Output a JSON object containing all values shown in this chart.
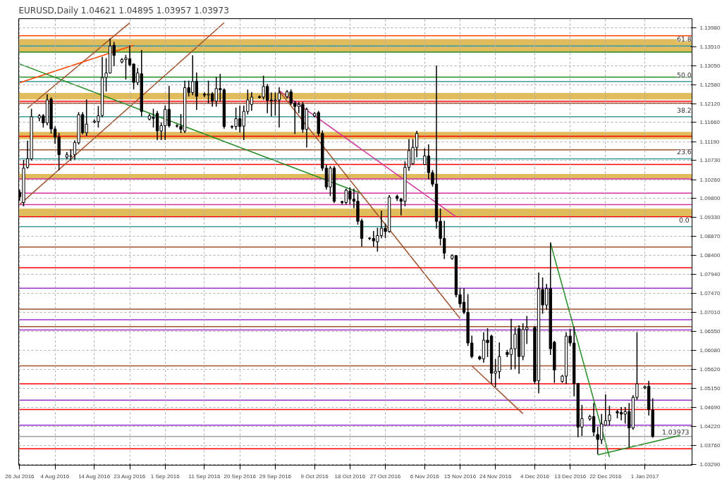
{
  "chart_data": {
    "type": "candlestick",
    "title": "EURUSD,Daily  1.04621 1.04895 1.03957 1.03973",
    "x": [
      "2016-07-26",
      "2016-07-27",
      "2016-07-28",
      "2016-07-29",
      "2016-07-31",
      "2016-08-01",
      "2016-08-02",
      "2016-08-03",
      "2016-08-04",
      "2016-08-05",
      "2016-08-07",
      "2016-08-08",
      "2016-08-09",
      "2016-08-10",
      "2016-08-11",
      "2016-08-12",
      "2016-08-14",
      "2016-08-15",
      "2016-08-16",
      "2016-08-17",
      "2016-08-18",
      "2016-08-19",
      "2016-08-21",
      "2016-08-22",
      "2016-08-23",
      "2016-08-24",
      "2016-08-25",
      "2016-08-26",
      "2016-08-28",
      "2016-08-29",
      "2016-08-30",
      "2016-08-31",
      "2016-09-01",
      "2016-09-02",
      "2016-09-04",
      "2016-09-05",
      "2016-09-06",
      "2016-09-07",
      "2016-09-08",
      "2016-09-09",
      "2016-09-11",
      "2016-09-12",
      "2016-09-13",
      "2016-09-14",
      "2016-09-15",
      "2016-09-16",
      "2016-09-18",
      "2016-09-19",
      "2016-09-20",
      "2016-09-21",
      "2016-09-22",
      "2016-09-23",
      "2016-09-25",
      "2016-09-26",
      "2016-09-27",
      "2016-09-28",
      "2016-09-29",
      "2016-09-30",
      "2016-10-02",
      "2016-10-03",
      "2016-10-04",
      "2016-10-05",
      "2016-10-06",
      "2016-10-07",
      "2016-10-09",
      "2016-10-10",
      "2016-10-11",
      "2016-10-12",
      "2016-10-13",
      "2016-10-14",
      "2016-10-16",
      "2016-10-17",
      "2016-10-18",
      "2016-10-19",
      "2016-10-20",
      "2016-10-21",
      "2016-10-23",
      "2016-10-24",
      "2016-10-25",
      "2016-10-26",
      "2016-10-27",
      "2016-10-28",
      "2016-10-30",
      "2016-10-31",
      "2016-11-01",
      "2016-11-02",
      "2016-11-03",
      "2016-11-04",
      "2016-11-06",
      "2016-11-07",
      "2016-11-08",
      "2016-11-09",
      "2016-11-10",
      "2016-11-11",
      "2016-11-13",
      "2016-11-14",
      "2016-11-15",
      "2016-11-16",
      "2016-11-17",
      "2016-11-18",
      "2016-11-20",
      "2016-11-21",
      "2016-11-22",
      "2016-11-23",
      "2016-11-24",
      "2016-11-25",
      "2016-11-27",
      "2016-11-28",
      "2016-11-29",
      "2016-11-30",
      "2016-12-01",
      "2016-12-02",
      "2016-12-04",
      "2016-12-05",
      "2016-12-06",
      "2016-12-07",
      "2016-12-08",
      "2016-12-09",
      "2016-12-11",
      "2016-12-12",
      "2016-12-13",
      "2016-12-14",
      "2016-12-15",
      "2016-12-16",
      "2016-12-18",
      "2016-12-19",
      "2016-12-20",
      "2016-12-21",
      "2016-12-22",
      "2016-12-23",
      "2016-12-25",
      "2016-12-26",
      "2016-12-27",
      "2016-12-28",
      "2016-12-29",
      "2016-12-30",
      "2017-01-01",
      "2017-01-02",
      "2017-01-03"
    ],
    "ohlc": [
      [
        1.0995,
        1.1,
        1.0975,
        1.0984
      ],
      [
        1.097,
        1.1073,
        1.0962,
        1.1054
      ],
      [
        1.1056,
        1.112,
        1.1054,
        1.1077
      ],
      [
        1.1077,
        1.1198,
        1.1074,
        1.118
      ],
      [
        1.1177,
        1.1185,
        1.117,
        1.1182
      ],
      [
        1.1182,
        1.1185,
        1.1155,
        1.1165
      ],
      [
        1.1165,
        1.1234,
        1.116,
        1.1221
      ],
      [
        1.1223,
        1.1226,
        1.114,
        1.115
      ],
      [
        1.115,
        1.1155,
        1.1115,
        1.113
      ],
      [
        1.113,
        1.1139,
        1.105,
        1.1087
      ],
      [
        1.1081,
        1.1092,
        1.1077,
        1.1087
      ],
      [
        1.1083,
        1.1099,
        1.1073,
        1.1084
      ],
      [
        1.1087,
        1.1121,
        1.1076,
        1.1117
      ],
      [
        1.1116,
        1.119,
        1.1113,
        1.1185
      ],
      [
        1.1185,
        1.119,
        1.1138,
        1.1141
      ],
      [
        1.1141,
        1.1221,
        1.1134,
        1.1162
      ],
      [
        1.1167,
        1.1172,
        1.1165,
        1.1169
      ],
      [
        1.1168,
        1.1205,
        1.1155,
        1.1182
      ],
      [
        1.1183,
        1.1325,
        1.118,
        1.1276
      ],
      [
        1.1276,
        1.1322,
        1.1243,
        1.1287
      ],
      [
        1.1287,
        1.137,
        1.1287,
        1.1353
      ],
      [
        1.1355,
        1.1362,
        1.1305,
        1.133
      ],
      [
        1.1314,
        1.1322,
        1.1312,
        1.132
      ],
      [
        1.132,
        1.133,
        1.1272,
        1.1324
      ],
      [
        1.1322,
        1.1353,
        1.1305,
        1.1307
      ],
      [
        1.1309,
        1.1309,
        1.1248,
        1.1264
      ],
      [
        1.1264,
        1.1298,
        1.1259,
        1.1287
      ],
      [
        1.1285,
        1.1342,
        1.1182,
        1.1193
      ],
      [
        1.1174,
        1.1186,
        1.1172,
        1.1182
      ],
      [
        1.1178,
        1.1198,
        1.1155,
        1.1176
      ],
      [
        1.1188,
        1.1193,
        1.1124,
        1.1145
      ],
      [
        1.1145,
        1.1165,
        1.1124,
        1.1158
      ],
      [
        1.1158,
        1.1206,
        1.1124,
        1.1198
      ],
      [
        1.1198,
        1.1254,
        1.1155,
        1.1158
      ],
      [
        1.1158,
        1.116,
        1.1155,
        1.1157
      ],
      [
        1.1156,
        1.1185,
        1.1141,
        1.1149
      ],
      [
        1.1145,
        1.1267,
        1.1141,
        1.1251
      ],
      [
        1.1251,
        1.1267,
        1.1231,
        1.1239
      ],
      [
        1.1239,
        1.1329,
        1.1234,
        1.1266
      ],
      [
        1.1267,
        1.1287,
        1.1198,
        1.123
      ],
      [
        1.1235,
        1.1238,
        1.1229,
        1.1233
      ],
      [
        1.1233,
        1.1267,
        1.1213,
        1.1235
      ],
      [
        1.1236,
        1.1239,
        1.1206,
        1.1218
      ],
      [
        1.1218,
        1.1276,
        1.1206,
        1.1249
      ],
      [
        1.1249,
        1.1284,
        1.1218,
        1.1246
      ],
      [
        1.1246,
        1.1248,
        1.1152,
        1.1156
      ],
      [
        1.1156,
        1.1158,
        1.1152,
        1.1155
      ],
      [
        1.1156,
        1.1201,
        1.1149,
        1.1175
      ],
      [
        1.1175,
        1.1206,
        1.1143,
        1.1156
      ],
      [
        1.1157,
        1.1206,
        1.1124,
        1.1193
      ],
      [
        1.1193,
        1.1245,
        1.1187,
        1.1221
      ],
      [
        1.121,
        1.1239,
        1.1196,
        1.1228
      ],
      [
        1.1229,
        1.1231,
        1.1226,
        1.1227
      ],
      [
        1.1228,
        1.1279,
        1.1223,
        1.1254
      ],
      [
        1.1254,
        1.1259,
        1.119,
        1.122
      ],
      [
        1.1221,
        1.1238,
        1.1182,
        1.1219
      ],
      [
        1.1219,
        1.1238,
        1.1184,
        1.1221
      ],
      [
        1.1221,
        1.1251,
        1.1155,
        1.1238
      ],
      [
        1.1229,
        1.1244,
        1.1226,
        1.1241
      ],
      [
        1.1241,
        1.1246,
        1.121,
        1.1213
      ],
      [
        1.1213,
        1.1218,
        1.1139,
        1.1205
      ],
      [
        1.1205,
        1.1215,
        1.119,
        1.121
      ],
      [
        1.121,
        1.1215,
        1.1142,
        1.1149
      ],
      [
        1.1149,
        1.1201,
        1.1106,
        1.1198
      ],
      [
        1.1182,
        1.119,
        1.118,
        1.1188
      ],
      [
        1.119,
        1.1193,
        1.1134,
        1.1139
      ],
      [
        1.1139,
        1.1145,
        1.1049,
        1.1054
      ],
      [
        1.1054,
        1.1061,
        1.1003,
        1.1008
      ],
      [
        1.1008,
        1.1058,
        1.0987,
        1.1054
      ],
      [
        1.1054,
        1.1058,
        1.097,
        1.0973
      ],
      [
        1.0972,
        1.0973,
        1.0966,
        1.097
      ],
      [
        1.097,
        1.1003,
        1.0966,
        1.1
      ],
      [
        1.0998,
        1.1006,
        1.0967,
        1.0978
      ],
      [
        1.0978,
        1.1003,
        1.0957,
        1.0973
      ],
      [
        1.0973,
        1.099,
        1.0917,
        1.0924
      ],
      [
        1.0925,
        1.0929,
        1.0863,
        1.0882
      ],
      [
        1.0883,
        1.0884,
        1.0879,
        1.0882
      ],
      [
        1.0882,
        1.0899,
        1.0863,
        1.0876
      ],
      [
        1.0874,
        1.0907,
        1.0851,
        1.0889
      ],
      [
        1.0889,
        1.0949,
        1.0884,
        1.0907
      ],
      [
        1.0907,
        1.0917,
        1.0884,
        1.0899
      ],
      [
        1.0899,
        1.0987,
        1.0897,
        1.0983
      ],
      [
        1.0985,
        1.0988,
        1.0975,
        1.098
      ],
      [
        1.0978,
        1.098,
        1.094,
        1.0973
      ],
      [
        1.0973,
        1.1069,
        1.0962,
        1.1056
      ],
      [
        1.1056,
        1.1124,
        1.1049,
        1.1097
      ],
      [
        1.1065,
        1.1124,
        1.1063,
        1.1105
      ],
      [
        1.1105,
        1.1144,
        1.1082,
        1.1139
      ],
      [
        1.1063,
        1.1101,
        1.1063,
        1.1084
      ],
      [
        1.1084,
        1.1111,
        1.1028,
        1.1043
      ],
      [
        1.1043,
        1.1048,
        1.101,
        1.1015
      ],
      [
        1.1015,
        1.1304,
        1.0907,
        1.0924
      ],
      [
        1.0924,
        1.0954,
        1.0866,
        1.0882
      ],
      [
        1.0882,
        1.0924,
        1.0833,
        1.0846
      ],
      [
        1.0833,
        1.0842,
        1.0831,
        1.084
      ],
      [
        1.084,
        1.084,
        1.0739,
        1.0744
      ],
      [
        1.0744,
        1.0759,
        1.0714,
        1.0722
      ],
      [
        1.0726,
        1.0759,
        1.0698,
        1.0701
      ],
      [
        1.0701,
        1.0744,
        1.062,
        1.0626
      ],
      [
        1.0626,
        1.0643,
        1.059,
        1.0593
      ],
      [
        1.0592,
        1.0594,
        1.0585,
        1.0587
      ],
      [
        1.0587,
        1.0651,
        1.0579,
        1.0633
      ],
      [
        1.0633,
        1.0661,
        1.0593,
        1.0627
      ],
      [
        1.0643,
        1.0645,
        1.0527,
        1.0552
      ],
      [
        1.0552,
        1.0585,
        1.0519,
        1.0557
      ],
      [
        1.0556,
        1.0626,
        1.054,
        1.0593
      ],
      [
        1.0603,
        1.0608,
        1.0593,
        1.0598
      ],
      [
        1.0598,
        1.0684,
        1.0562,
        1.0612
      ],
      [
        1.0612,
        1.0663,
        1.0564,
        1.0648
      ],
      [
        1.0661,
        1.0668,
        1.0552,
        1.0593
      ],
      [
        1.0593,
        1.0673,
        1.0585,
        1.0659
      ],
      [
        1.0659,
        1.0691,
        1.0625,
        1.0664
      ],
      [
        1.0664,
        1.0666,
        1.0527,
        1.0532
      ],
      [
        1.0534,
        1.0797,
        1.0504,
        1.0759
      ],
      [
        1.0757,
        1.0785,
        1.0699,
        1.0719
      ],
      [
        1.0719,
        1.0769,
        1.0709,
        1.0759
      ],
      [
        1.0759,
        1.0871,
        1.0598,
        1.0612
      ],
      [
        1.0628,
        1.063,
        1.053,
        1.056
      ],
      [
        1.0532,
        1.0547,
        1.053,
        1.0545
      ],
      [
        1.0545,
        1.0651,
        1.0527,
        1.0643
      ],
      [
        1.0643,
        1.0659,
        1.062,
        1.0626
      ],
      [
        1.0626,
        1.0664,
        1.0497,
        1.0527
      ],
      [
        1.0527,
        1.0527,
        1.0397,
        1.042
      ],
      [
        1.042,
        1.0473,
        1.04,
        1.0441
      ],
      [
        1.044,
        1.0449,
        1.0437,
        1.0446
      ],
      [
        1.0446,
        1.0478,
        1.04,
        1.0408
      ],
      [
        1.0402,
        1.042,
        1.0355,
        1.039
      ],
      [
        1.0389,
        1.0451,
        1.038,
        1.0428
      ],
      [
        1.0425,
        1.0499,
        1.0425,
        1.0436
      ],
      [
        1.0436,
        1.0471,
        1.0425,
        1.045
      ],
      [
        1.0458,
        1.0461,
        1.0443,
        1.0455
      ],
      [
        1.0456,
        1.0468,
        1.0438,
        1.0452
      ],
      [
        1.0452,
        1.0468,
        1.043,
        1.0458
      ],
      [
        1.0458,
        1.0478,
        1.0372,
        1.0418
      ],
      [
        1.0418,
        1.0497,
        1.0415,
        1.0493
      ],
      [
        1.0493,
        1.0651,
        1.0488,
        1.0526
      ],
      [
        1.0516,
        1.0521,
        1.0514,
        1.0519
      ],
      [
        1.052,
        1.0532,
        1.045,
        1.0463
      ],
      [
        1.04621,
        1.04895,
        1.03957,
        1.03973
      ]
    ],
    "series": [
      {
        "type": "line",
        "color": "#a0522d",
        "x": [
          "2016-07-26",
          "2016-09-16"
        ],
        "values": [
          1.0965,
          1.141
        ]
      },
      {
        "type": "line",
        "color": "#a0522d",
        "x": [
          "2016-07-28",
          "2016-08-23"
        ],
        "values": [
          1.1201,
          1.141
        ]
      },
      {
        "type": "line",
        "color": "#ff4500",
        "x": [
          "2016-07-26",
          "2016-08-24"
        ],
        "values": [
          1.1263,
          1.1355
        ]
      },
      {
        "type": "line",
        "color": "#228b22",
        "x": [
          "2016-07-26",
          "2016-10-21"
        ],
        "values": [
          1.1309,
          1.0992
        ]
      },
      {
        "type": "line",
        "color": "#d1329b",
        "x": [
          "2016-09-30",
          "2016-11-14"
        ],
        "values": [
          1.1244,
          1.0935
        ]
      },
      {
        "type": "line",
        "color": "#a0522d",
        "x": [
          "2016-09-30",
          "2016-11-15"
        ],
        "values": [
          1.1243,
          1.0686
        ]
      },
      {
        "type": "line",
        "color": "#a0522d",
        "x": [
          "2016-11-18",
          "2016-12-01"
        ],
        "values": [
          1.057,
          1.0453
        ]
      },
      {
        "type": "line",
        "color": "#228b22",
        "x": [
          "2016-12-08",
          "2016-12-23"
        ],
        "values": [
          1.0871,
          1.0347
        ]
      },
      {
        "type": "line",
        "color": "#228b22",
        "x": [
          "2016-12-20",
          "2017-01-10"
        ],
        "values": [
          1.0352,
          1.04
        ]
      }
    ],
    "bands": [
      {
        "axis": "y",
        "from": 1.1338,
        "to": 1.137,
        "color": "#d4a017"
      },
      {
        "axis": "y",
        "from": 1.1222,
        "to": 1.1238,
        "color": "#d4a017"
      },
      {
        "axis": "y",
        "from": 1.1125,
        "to": 1.1143,
        "color": "#d4a017"
      },
      {
        "axis": "y",
        "from": 1.1028,
        "to": 1.104,
        "color": "#d4a017"
      },
      {
        "axis": "y",
        "from": 1.0935,
        "to": 1.0955,
        "color": "#d4a017"
      }
    ],
    "ref_lines": [
      {
        "axis": "y",
        "value": 1.1378,
        "color": "#ff4500"
      },
      {
        "axis": "y",
        "value": 1.1353,
        "color": "#3c9c9c"
      },
      {
        "axis": "y",
        "value": 1.1338,
        "color": "#228b22"
      },
      {
        "axis": "y",
        "value": 1.1277,
        "color": "#228b22"
      },
      {
        "axis": "y",
        "value": 1.1266,
        "color": "#3c9c9c"
      },
      {
        "axis": "y",
        "value": 1.1218,
        "color": "#ff0000"
      },
      {
        "axis": "y",
        "value": 1.1213,
        "color": "#a0522d"
      },
      {
        "axis": "y",
        "value": 1.118,
        "color": "#3c9c9c"
      },
      {
        "axis": "y",
        "value": 1.1132,
        "color": "#ff0000"
      },
      {
        "axis": "y",
        "value": 1.1099,
        "color": "#a0522d"
      },
      {
        "axis": "y",
        "value": 1.1077,
        "color": "#3c9c9c"
      },
      {
        "axis": "y",
        "value": 1.1063,
        "color": "#ff0000"
      },
      {
        "axis": "y",
        "value": 1.1028,
        "color": "#d1329b"
      },
      {
        "axis": "y",
        "value": 1.0993,
        "color": "#d1329b"
      },
      {
        "axis": "y",
        "value": 1.0965,
        "color": "#d1329b"
      },
      {
        "axis": "y",
        "value": 1.0935,
        "color": "#ff0000"
      },
      {
        "axis": "y",
        "value": 1.0911,
        "color": "#3c9c9c"
      },
      {
        "axis": "y",
        "value": 1.0861,
        "color": "#a0522d"
      },
      {
        "axis": "y",
        "value": 1.081,
        "color": "#ff0000"
      },
      {
        "axis": "y",
        "value": 1.076,
        "color": "#9932cc"
      },
      {
        "axis": "y",
        "value": 1.0709,
        "color": "#a0522d"
      },
      {
        "axis": "y",
        "value": 1.0683,
        "color": "#9932cc"
      },
      {
        "axis": "y",
        "value": 1.0666,
        "color": "#a0522d"
      },
      {
        "axis": "y",
        "value": 1.0658,
        "color": "#9932cc"
      },
      {
        "axis": "y",
        "value": 1.057,
        "color": "#a0522d"
      },
      {
        "axis": "y",
        "value": 1.0526,
        "color": "#ff0000"
      },
      {
        "axis": "y",
        "value": 1.0486,
        "color": "#9932cc"
      },
      {
        "axis": "y",
        "value": 1.0463,
        "color": "#ff0000"
      },
      {
        "axis": "y",
        "value": 1.0425,
        "color": "#9932cc"
      },
      {
        "axis": "y",
        "value": 1.0367,
        "color": "#ff0000"
      },
      {
        "axis": "y",
        "value": 1.03973,
        "color": "#a0a0a0",
        "label": "1.03973"
      }
    ],
    "annotations": [
      {
        "text": "61.8",
        "x": "2017-01-11",
        "y": 1.1353
      },
      {
        "text": "50.0",
        "x": "2017-01-11",
        "y": 1.1266
      },
      {
        "text": "38.2",
        "x": "2017-01-11",
        "y": 1.118
      },
      {
        "text": "23.6",
        "x": "2017-01-11",
        "y": 1.1077
      },
      {
        "text": "0.0",
        "x": "2017-01-11",
        "y": 1.0911
      }
    ],
    "xlim": [
      "2016-07-25T18:00",
      "2017-01-13"
    ],
    "xticks": [
      {
        "value": "2016-07-26",
        "label": "26 Jul 2016"
      },
      {
        "value": "2016-08-04",
        "label": "4 Aug 2016"
      },
      {
        "value": "2016-08-14",
        "label": "14 Aug 2016"
      },
      {
        "value": "2016-08-23",
        "label": "23 Aug 2016"
      },
      {
        "value": "2016-09-01",
        "label": "1 Sep 2016"
      },
      {
        "value": "2016-09-11",
        "label": "11 Sep 2016"
      },
      {
        "value": "2016-09-20",
        "label": "20 Sep 2016"
      },
      {
        "value": "2016-09-29",
        "label": "29 Sep 2016"
      },
      {
        "value": "2016-10-09",
        "label": "9 Oct 2016"
      },
      {
        "value": "2016-10-18",
        "label": "18 Oct 2016"
      },
      {
        "value": "2016-10-27",
        "label": "27 Oct 2016"
      },
      {
        "value": "2016-11-06",
        "label": "6 Nov 2016"
      },
      {
        "value": "2016-11-15",
        "label": "15 Nov 2016"
      },
      {
        "value": "2016-11-24",
        "label": "24 Nov 2016"
      },
      {
        "value": "2016-12-04",
        "label": "4 Dec 2016"
      },
      {
        "value": "2016-12-13",
        "label": "13 Dec 2016"
      },
      {
        "value": "2016-12-22",
        "label": "22 Dec 2016"
      },
      {
        "value": "2017-01-01",
        "label": "1 Jan 2017"
      }
    ],
    "ylim": [
      1.0327,
      1.142
    ],
    "yticks": [
      {
        "value": 1.1398,
        "label": "1.13980"
      },
      {
        "value": 1.1351,
        "label": "1.13510"
      },
      {
        "value": 1.1305,
        "label": "1.13050"
      },
      {
        "value": 1.1258,
        "label": "1.12580"
      },
      {
        "value": 1.1212,
        "label": "1.12120"
      },
      {
        "value": 1.1166,
        "label": "1.11660"
      },
      {
        "value": 1.1119,
        "label": "1.11190"
      },
      {
        "value": 1.1073,
        "label": "1.10730"
      },
      {
        "value": 1.1026,
        "label": "1.10260"
      },
      {
        "value": 1.098,
        "label": "1.09800"
      },
      {
        "value": 1.0933,
        "label": "1.09330"
      },
      {
        "value": 1.0887,
        "label": "1.08870"
      },
      {
        "value": 1.084,
        "label": "1.08400"
      },
      {
        "value": 1.0794,
        "label": "1.07940"
      },
      {
        "value": 1.0747,
        "label": "1.07470"
      },
      {
        "value": 1.0701,
        "label": "1.07010"
      },
      {
        "value": 1.0655,
        "label": "1.06550"
      },
      {
        "value": 1.0608,
        "label": "1.06080"
      },
      {
        "value": 1.0562,
        "label": "1.05620"
      },
      {
        "value": 1.0515,
        "label": "1.05150"
      },
      {
        "value": 1.0469,
        "label": "1.04690"
      },
      {
        "value": 1.0422,
        "label": "1.04220"
      },
      {
        "value": 1.0376,
        "label": "1.03760"
      },
      {
        "value": 1.0329,
        "label": "1.03290"
      }
    ],
    "grid": true
  }
}
